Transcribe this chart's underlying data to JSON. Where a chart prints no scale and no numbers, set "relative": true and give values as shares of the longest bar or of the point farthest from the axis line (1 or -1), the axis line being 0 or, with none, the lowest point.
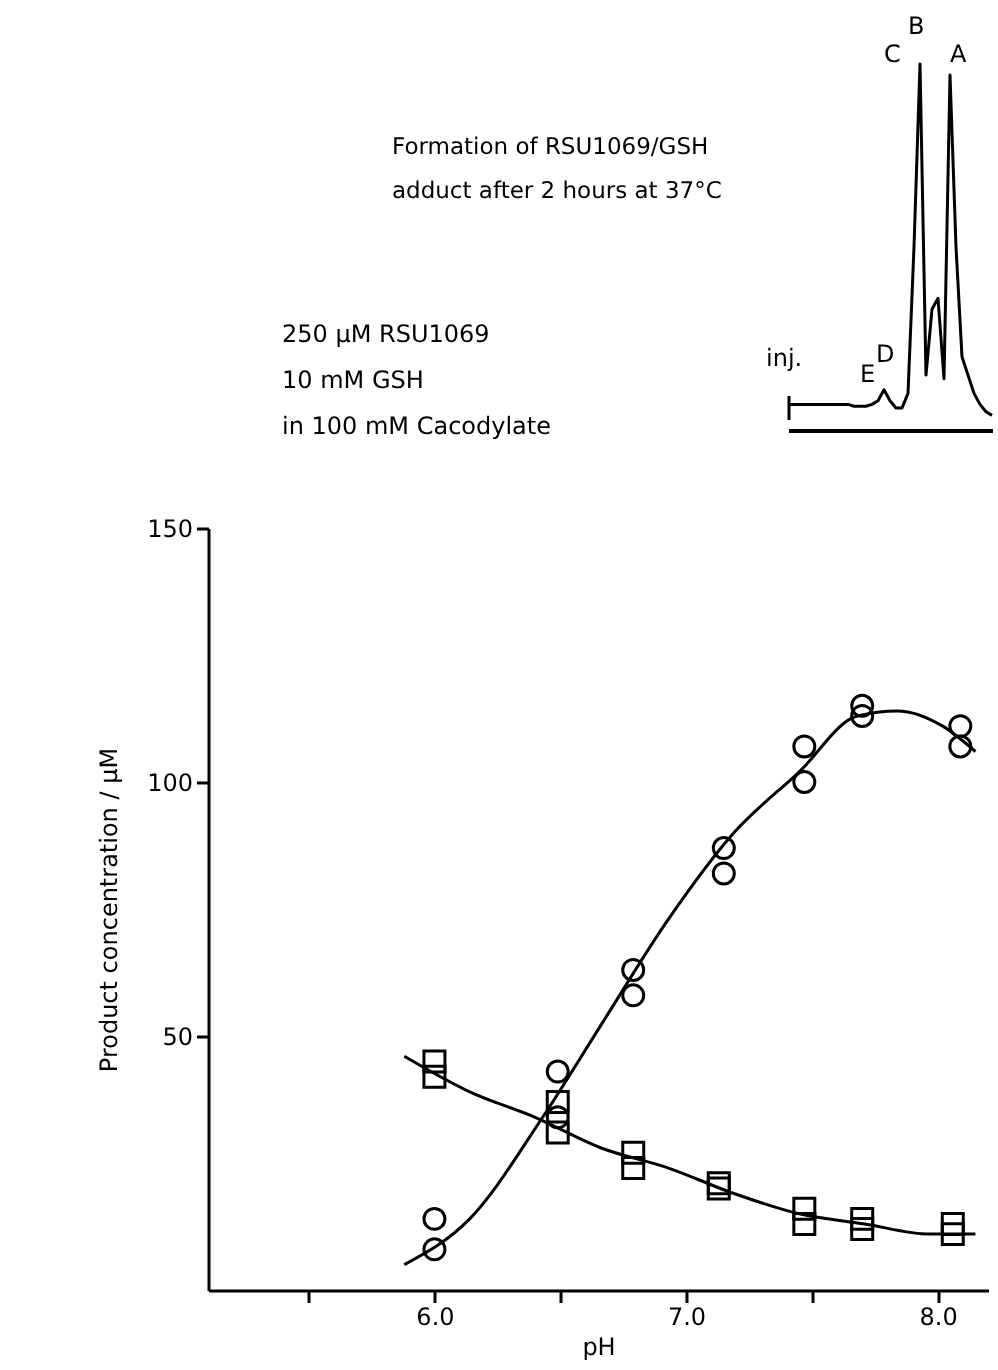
{
  "chart_data": [
    {
      "type": "scatter",
      "title": "Formation of RSU1069/GSH adduct after 2 hours at 37°C",
      "xlabel": "pH",
      "ylabel": "Product concentration / μM",
      "annotations": [
        "250 μM RSU1069",
        "10 mM GSH",
        "in 100 mM Cacodylate"
      ],
      "xlim": [
        5.1,
        8.2
      ],
      "xticks": [
        {
          "value": 5.5,
          "label": null
        },
        {
          "value": 6,
          "label": "6.0"
        },
        {
          "value": 6.5,
          "label": null
        },
        {
          "value": 7,
          "label": "7.0"
        },
        {
          "value": 7.5,
          "label": null
        },
        {
          "value": 8,
          "label": "8.0"
        }
      ],
      "ylim": [
        0,
        150
      ],
      "yticks": [
        50,
        100,
        150
      ],
      "grid": false,
      "series": [
        {
          "type": "scatter",
          "marker": "circle",
          "color": "#000000",
          "x": [
            6.0,
            6.0,
            6.49,
            6.49,
            6.79,
            6.79,
            7.15,
            7.15,
            7.47,
            7.47,
            7.7,
            7.7,
            8.09,
            8.09
          ],
          "values": [
            14,
            8,
            43,
            34,
            63,
            58,
            87,
            82,
            107,
            100,
            115,
            113,
            111,
            107
          ]
        },
        {
          "type": "scatter",
          "marker": "square",
          "color": "#000000",
          "x": [
            6.0,
            6.0,
            6.49,
            6.49,
            6.79,
            6.79,
            7.13,
            7.13,
            7.47,
            7.47,
            7.7,
            7.7,
            8.06,
            8.06
          ],
          "values": [
            45,
            42,
            37,
            31,
            27,
            24,
            21,
            20,
            16,
            13,
            14,
            12,
            13,
            11
          ]
        },
        {
          "type": "line",
          "marker": "none",
          "color": "#000000",
          "x": [
            5.88,
            6.14,
            6.43,
            6.66,
            6.93,
            7.19,
            7.45,
            7.68,
            7.84,
            8.02,
            8.15
          ],
          "values": [
            5,
            14,
            34,
            52,
            73,
            90,
            102,
            113,
            114,
            111,
            106
          ]
        },
        {
          "type": "line",
          "marker": "none",
          "color": "#000000",
          "x": [
            5.88,
            6.14,
            6.4,
            6.66,
            6.93,
            7.19,
            7.45,
            7.71,
            7.97,
            8.15
          ],
          "values": [
            46,
            39,
            34,
            28,
            24,
            19,
            15,
            13,
            11,
            11
          ]
        }
      ]
    },
    {
      "type": "line",
      "relative": true,
      "color": "#000000",
      "annotations": [
        "B",
        "C",
        "A",
        "inj.",
        "E",
        "D"
      ],
      "categories": [
        null,
        null,
        null,
        null,
        null,
        null,
        null,
        null,
        null,
        null,
        null,
        null,
        null,
        null,
        null,
        null,
        null,
        null,
        null,
        null,
        null,
        null,
        null,
        null,
        null,
        null,
        null,
        null,
        null,
        null,
        null,
        null,
        null,
        null,
        null
      ],
      "values": [
        0.07,
        0.07,
        0.07,
        0.07,
        0.07,
        0.07,
        0.07,
        0.07,
        0.07,
        0.07,
        0.07,
        0.065,
        0.065,
        0.065,
        0.07,
        0.08,
        0.11,
        0.08,
        0.06,
        0.06,
        0.1,
        0.5,
        1,
        0.15,
        0.33,
        0.36,
        0.14,
        0.97,
        0.5,
        0.2,
        0.15,
        0.1,
        0.07,
        0.05,
        0.04
      ]
    }
  ]
}
